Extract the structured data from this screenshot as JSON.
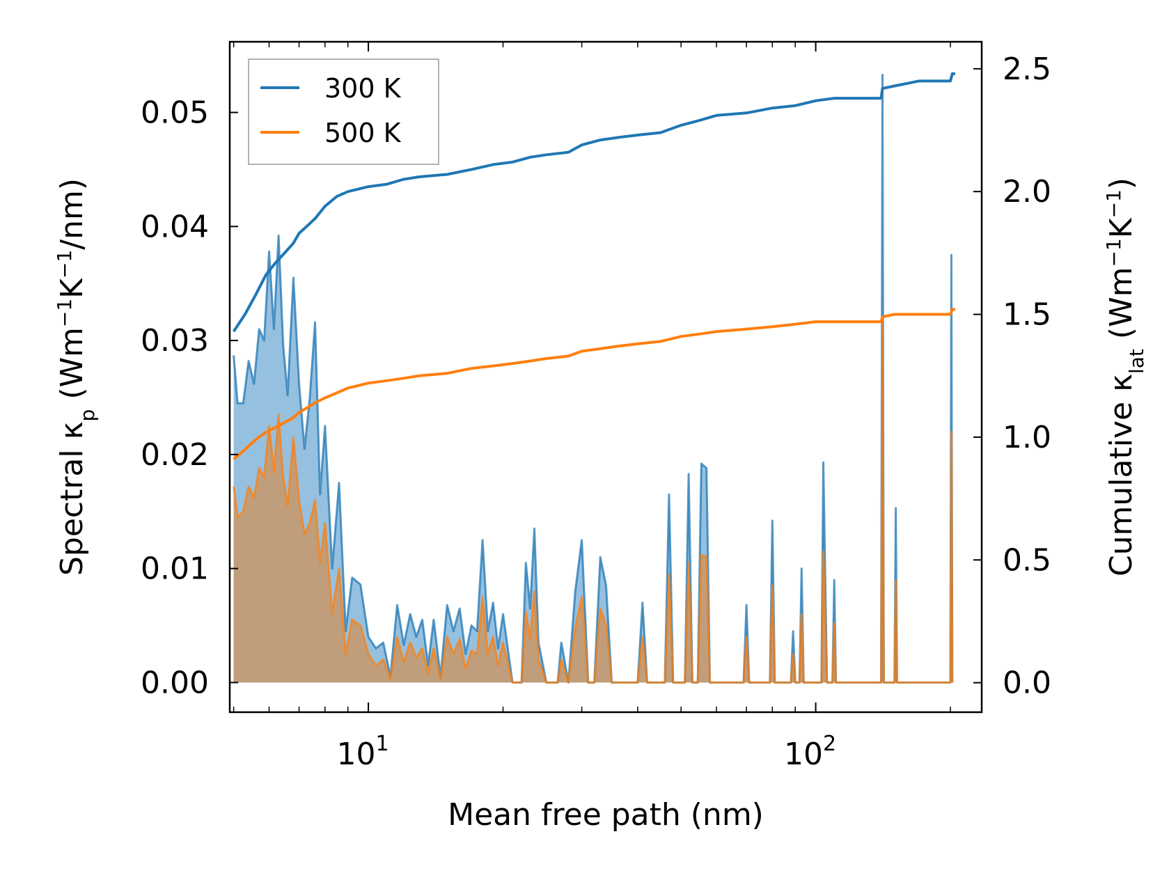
{
  "chart_data": {
    "type": "line",
    "xlabel": "Mean free path (nm)",
    "xscale": "log",
    "xlim": [
      4.9,
      235
    ],
    "x_tick_labels": [
      {
        "value": 10,
        "base": "10",
        "exp": "1"
      },
      {
        "value": 100,
        "base": "10",
        "exp": "2"
      }
    ],
    "left_axis": {
      "label": {
        "main": "Spectral κ",
        "sub": "p",
        "unit_pre": " (Wm",
        "sup1": "−1",
        "unit_mid": "K",
        "sup2": "−1",
        "unit_post": "/nm)"
      },
      "ylim": [
        -0.0026,
        0.0562
      ],
      "ticks": [
        0.0,
        0.01,
        0.02,
        0.03,
        0.04,
        0.05
      ],
      "tick_labels": [
        "0.00",
        "0.01",
        "0.02",
        "0.03",
        "0.04",
        "0.05"
      ]
    },
    "right_axis": {
      "label": {
        "main": "Cumulative κ",
        "sub": "lat",
        "unit_pre": " (Wm",
        "sup1": "−1",
        "unit_mid": "K",
        "sup2": "−1",
        "unit_post": ")"
      },
      "ylim": [
        -0.12,
        2.61
      ],
      "ticks": [
        0.0,
        0.5,
        1.0,
        1.5,
        2.0,
        2.5
      ],
      "tick_labels": [
        "0.0",
        "0.5",
        "1.0",
        "1.5",
        "2.0",
        "2.5"
      ]
    },
    "series": [
      {
        "name": "300 K",
        "color": "#1f77b4",
        "fill_color": "#8bb9dc",
        "spectral": [
          [
            5.0,
            0.0287
          ],
          [
            5.1,
            0.0245
          ],
          [
            5.25,
            0.0245
          ],
          [
            5.4,
            0.0282
          ],
          [
            5.55,
            0.0262
          ],
          [
            5.7,
            0.031
          ],
          [
            5.85,
            0.03
          ],
          [
            6.0,
            0.0378
          ],
          [
            6.15,
            0.031
          ],
          [
            6.3,
            0.0392
          ],
          [
            6.45,
            0.0296
          ],
          [
            6.6,
            0.0252
          ],
          [
            6.8,
            0.0355
          ],
          [
            7.0,
            0.0262
          ],
          [
            7.2,
            0.0205
          ],
          [
            7.4,
            0.025
          ],
          [
            7.6,
            0.0316
          ],
          [
            7.8,
            0.0165
          ],
          [
            8.0,
            0.0225
          ],
          [
            8.3,
            0.01
          ],
          [
            8.6,
            0.0175
          ],
          [
            8.9,
            0.0045
          ],
          [
            9.2,
            0.0092
          ],
          [
            9.6,
            0.0086
          ],
          [
            10.0,
            0.004
          ],
          [
            10.4,
            0.003
          ],
          [
            10.8,
            0.0035
          ],
          [
            11.2,
            0.0005
          ],
          [
            11.6,
            0.0068
          ],
          [
            12.0,
            0.0033
          ],
          [
            12.4,
            0.006
          ],
          [
            12.8,
            0.004
          ],
          [
            13.2,
            0.0055
          ],
          [
            13.6,
            0.0015
          ],
          [
            14.0,
            0.0055
          ],
          [
            14.5,
            0.0005
          ],
          [
            15.0,
            0.0068
          ],
          [
            15.5,
            0.0045
          ],
          [
            16.0,
            0.0065
          ],
          [
            16.5,
            0.0025
          ],
          [
            17.0,
            0.005
          ],
          [
            17.5,
            0.0045
          ],
          [
            18.0,
            0.0125
          ],
          [
            18.5,
            0.0045
          ],
          [
            19.0,
            0.007
          ],
          [
            19.5,
            0.003
          ],
          [
            20.0,
            0.006
          ],
          [
            21.0,
            0.0
          ],
          [
            22.0,
            0.0
          ],
          [
            22.5,
            0.0105
          ],
          [
            23.0,
            0.0065
          ],
          [
            23.5,
            0.0135
          ],
          [
            24.0,
            0.0035
          ],
          [
            25.0,
            0.0
          ],
          [
            26.5,
            0.0
          ],
          [
            27.0,
            0.0035
          ],
          [
            28.0,
            0.0
          ],
          [
            29.0,
            0.008
          ],
          [
            30.0,
            0.0125
          ],
          [
            31.0,
            0.0
          ],
          [
            32.0,
            0.0
          ],
          [
            33.0,
            0.011
          ],
          [
            34.0,
            0.0085
          ],
          [
            35.0,
            0.0
          ],
          [
            40.0,
            0.0
          ],
          [
            41.0,
            0.007
          ],
          [
            42.0,
            0.0
          ],
          [
            46.0,
            0.0
          ],
          [
            47.0,
            0.0165
          ],
          [
            48.0,
            0.0
          ],
          [
            51.0,
            0.0
          ],
          [
            52.0,
            0.0183
          ],
          [
            53.0,
            0.0
          ],
          [
            54.5,
            0.0
          ],
          [
            55.5,
            0.0192
          ],
          [
            57.0,
            0.0188
          ],
          [
            58.0,
            0.0
          ],
          [
            69.0,
            0.0
          ],
          [
            70.0,
            0.0068
          ],
          [
            71.0,
            0.0
          ],
          [
            79.0,
            0.0
          ],
          [
            80.0,
            0.0142
          ],
          [
            81.0,
            0.0
          ],
          [
            88.0,
            0.0
          ],
          [
            89.0,
            0.0045
          ],
          [
            90.0,
            0.0
          ],
          [
            92.0,
            0.0
          ],
          [
            93.0,
            0.01
          ],
          [
            94.0,
            0.0
          ],
          [
            103.0,
            0.0
          ],
          [
            104.0,
            0.0193
          ],
          [
            106.0,
            0.0
          ],
          [
            109.0,
            0.0
          ],
          [
            110.0,
            0.009
          ],
          [
            111.0,
            0.0
          ],
          [
            140.0,
            0.0
          ],
          [
            141.0,
            0.0533
          ],
          [
            142.0,
            0.0
          ],
          [
            150.0,
            0.0
          ],
          [
            151.0,
            0.0153
          ],
          [
            152.0,
            0.0
          ],
          [
            200.0,
            0.0
          ],
          [
            201.0,
            0.0375
          ],
          [
            202.0,
            0.0
          ]
        ],
        "cumulative": [
          [
            5.0,
            1.43
          ],
          [
            5.3,
            1.5
          ],
          [
            5.6,
            1.58
          ],
          [
            5.9,
            1.66
          ],
          [
            6.2,
            1.71
          ],
          [
            6.5,
            1.75
          ],
          [
            6.8,
            1.79
          ],
          [
            7.0,
            1.83
          ],
          [
            7.3,
            1.86
          ],
          [
            7.6,
            1.89
          ],
          [
            8.0,
            1.94
          ],
          [
            8.5,
            1.98
          ],
          [
            9.0,
            2.0
          ],
          [
            10.0,
            2.02
          ],
          [
            11.0,
            2.03
          ],
          [
            12.0,
            2.05
          ],
          [
            13.0,
            2.06
          ],
          [
            15.0,
            2.07
          ],
          [
            17.0,
            2.09
          ],
          [
            19.0,
            2.11
          ],
          [
            21.0,
            2.12
          ],
          [
            23.0,
            2.14
          ],
          [
            25.0,
            2.15
          ],
          [
            28.0,
            2.16
          ],
          [
            30.0,
            2.19
          ],
          [
            33.0,
            2.21
          ],
          [
            36.0,
            2.22
          ],
          [
            40.0,
            2.23
          ],
          [
            45.0,
            2.24
          ],
          [
            50.0,
            2.27
          ],
          [
            55.0,
            2.29
          ],
          [
            60.0,
            2.31
          ],
          [
            70.0,
            2.32
          ],
          [
            80.0,
            2.34
          ],
          [
            90.0,
            2.35
          ],
          [
            100.0,
            2.37
          ],
          [
            110.0,
            2.38
          ],
          [
            140.0,
            2.38
          ],
          [
            141.0,
            2.42
          ],
          [
            150.0,
            2.43
          ],
          [
            170.0,
            2.45
          ],
          [
            200.0,
            2.45
          ],
          [
            202.0,
            2.48
          ],
          [
            205.0,
            2.48
          ]
        ]
      },
      {
        "name": "500 K",
        "color": "#ff7f0e",
        "fill_color": "#c49a70",
        "spectral": [
          [
            5.0,
            0.0172
          ],
          [
            5.1,
            0.0145
          ],
          [
            5.25,
            0.015
          ],
          [
            5.4,
            0.0172
          ],
          [
            5.55,
            0.0162
          ],
          [
            5.7,
            0.0188
          ],
          [
            5.85,
            0.018
          ],
          [
            6.0,
            0.0225
          ],
          [
            6.15,
            0.0185
          ],
          [
            6.3,
            0.0235
          ],
          [
            6.45,
            0.018
          ],
          [
            6.6,
            0.0155
          ],
          [
            6.8,
            0.0215
          ],
          [
            7.0,
            0.016
          ],
          [
            7.2,
            0.013
          ],
          [
            7.4,
            0.014
          ],
          [
            7.6,
            0.016
          ],
          [
            7.8,
            0.0105
          ],
          [
            8.0,
            0.014
          ],
          [
            8.3,
            0.006
          ],
          [
            8.6,
            0.01
          ],
          [
            8.9,
            0.0025
          ],
          [
            9.2,
            0.0055
          ],
          [
            9.6,
            0.005
          ],
          [
            10.0,
            0.0025
          ],
          [
            10.4,
            0.0015
          ],
          [
            10.8,
            0.002
          ],
          [
            11.2,
            0.0003
          ],
          [
            11.6,
            0.004
          ],
          [
            12.0,
            0.0018
          ],
          [
            12.4,
            0.0035
          ],
          [
            12.8,
            0.0022
          ],
          [
            13.2,
            0.003
          ],
          [
            13.6,
            0.0008
          ],
          [
            14.0,
            0.003
          ],
          [
            14.5,
            0.0003
          ],
          [
            15.0,
            0.004
          ],
          [
            15.5,
            0.0025
          ],
          [
            16.0,
            0.0038
          ],
          [
            16.5,
            0.0012
          ],
          [
            17.0,
            0.0028
          ],
          [
            17.5,
            0.0025
          ],
          [
            18.0,
            0.0075
          ],
          [
            18.5,
            0.0025
          ],
          [
            19.0,
            0.004
          ],
          [
            19.5,
            0.0015
          ],
          [
            20.0,
            0.0035
          ],
          [
            21.0,
            0.0
          ],
          [
            22.0,
            0.0
          ],
          [
            22.5,
            0.0062
          ],
          [
            23.0,
            0.0038
          ],
          [
            23.5,
            0.008
          ],
          [
            24.0,
            0.002
          ],
          [
            25.0,
            0.0
          ],
          [
            26.5,
            0.0
          ],
          [
            27.0,
            0.002
          ],
          [
            28.0,
            0.0
          ],
          [
            29.0,
            0.0048
          ],
          [
            30.0,
            0.0075
          ],
          [
            31.0,
            0.0
          ],
          [
            32.0,
            0.0
          ],
          [
            33.0,
            0.0065
          ],
          [
            34.0,
            0.005
          ],
          [
            35.0,
            0.0
          ],
          [
            40.0,
            0.0
          ],
          [
            41.0,
            0.004
          ],
          [
            42.0,
            0.0
          ],
          [
            46.0,
            0.0
          ],
          [
            47.0,
            0.0095
          ],
          [
            48.0,
            0.0
          ],
          [
            51.0,
            0.0
          ],
          [
            52.0,
            0.0105
          ],
          [
            53.0,
            0.0
          ],
          [
            54.5,
            0.0
          ],
          [
            55.5,
            0.0112
          ],
          [
            57.0,
            0.011
          ],
          [
            58.0,
            0.0
          ],
          [
            69.0,
            0.0
          ],
          [
            70.0,
            0.004
          ],
          [
            71.0,
            0.0
          ],
          [
            79.0,
            0.0
          ],
          [
            80.0,
            0.0085
          ],
          [
            81.0,
            0.0
          ],
          [
            88.0,
            0.0
          ],
          [
            89.0,
            0.0025
          ],
          [
            90.0,
            0.0
          ],
          [
            92.0,
            0.0
          ],
          [
            93.0,
            0.006
          ],
          [
            94.0,
            0.0
          ],
          [
            103.0,
            0.0
          ],
          [
            104.0,
            0.0115
          ],
          [
            106.0,
            0.0
          ],
          [
            109.0,
            0.0
          ],
          [
            110.0,
            0.0052
          ],
          [
            111.0,
            0.0
          ],
          [
            140.0,
            0.0
          ],
          [
            141.0,
            0.032
          ],
          [
            142.0,
            0.0
          ],
          [
            150.0,
            0.0
          ],
          [
            151.0,
            0.009
          ],
          [
            152.0,
            0.0
          ],
          [
            200.0,
            0.0
          ],
          [
            201.0,
            0.022
          ],
          [
            202.0,
            0.0
          ]
        ],
        "cumulative": [
          [
            5.0,
            0.91
          ],
          [
            5.3,
            0.95
          ],
          [
            5.6,
            0.99
          ],
          [
            5.9,
            1.02
          ],
          [
            6.2,
            1.04
          ],
          [
            6.5,
            1.06
          ],
          [
            6.8,
            1.08
          ],
          [
            7.0,
            1.1
          ],
          [
            7.3,
            1.12
          ],
          [
            7.6,
            1.14
          ],
          [
            8.0,
            1.16
          ],
          [
            8.5,
            1.18
          ],
          [
            9.0,
            1.2
          ],
          [
            10.0,
            1.22
          ],
          [
            11.0,
            1.23
          ],
          [
            12.0,
            1.24
          ],
          [
            13.0,
            1.25
          ],
          [
            15.0,
            1.26
          ],
          [
            17.0,
            1.28
          ],
          [
            19.0,
            1.29
          ],
          [
            21.0,
            1.3
          ],
          [
            23.0,
            1.31
          ],
          [
            25.0,
            1.32
          ],
          [
            28.0,
            1.33
          ],
          [
            30.0,
            1.35
          ],
          [
            33.0,
            1.36
          ],
          [
            36.0,
            1.37
          ],
          [
            40.0,
            1.38
          ],
          [
            45.0,
            1.39
          ],
          [
            50.0,
            1.41
          ],
          [
            55.0,
            1.42
          ],
          [
            60.0,
            1.43
          ],
          [
            70.0,
            1.44
          ],
          [
            80.0,
            1.45
          ],
          [
            90.0,
            1.46
          ],
          [
            100.0,
            1.47
          ],
          [
            110.0,
            1.47
          ],
          [
            140.0,
            1.47
          ],
          [
            141.0,
            1.49
          ],
          [
            150.0,
            1.5
          ],
          [
            170.0,
            1.5
          ],
          [
            200.0,
            1.5
          ],
          [
            202.0,
            1.52
          ],
          [
            205.0,
            1.52
          ]
        ]
      }
    ],
    "legend": {
      "placement": "top-left",
      "entries": [
        "300 K",
        "500 K"
      ]
    }
  }
}
